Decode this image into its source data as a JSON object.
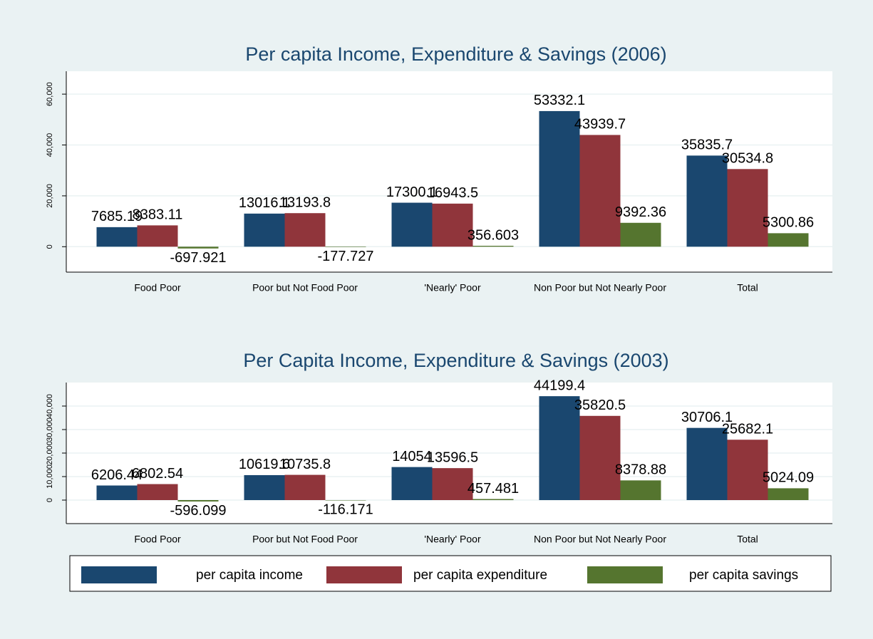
{
  "chart_data": [
    {
      "type": "bar",
      "title": "Per capita Income, Expenditure & Savings (2006)",
      "categories": [
        "Food Poor",
        "Poor but Not Food Poor",
        "'Nearly' Poor",
        "Non Poor but Not Nearly Poor",
        "Total"
      ],
      "series": [
        {
          "color": "#1a476f",
          "values": [
            7685.19,
            13016.1,
            17300.1,
            53332.1,
            35835.7
          ]
        },
        {
          "color": "#90353b",
          "values": [
            8383.11,
            13193.8,
            16943.5,
            43939.7,
            30534.8
          ]
        },
        {
          "color": "#55752f",
          "values": [
            -697.921,
            -177.727,
            356.603,
            9392.36,
            5300.86
          ]
        }
      ],
      "ylim": [
        -10000,
        69000
      ],
      "yticks": [
        0,
        {
          "value": 20000,
          "label": "20,000"
        },
        {
          "value": 40000,
          "label": "40,000"
        },
        {
          "value": 60000,
          "label": "60,000"
        }
      ],
      "grid": true
    },
    {
      "type": "bar",
      "title": "Per Capita Income,  Expenditure & Savings (2003)",
      "categories": [
        "Food Poor",
        "Poor but Not Food Poor",
        "'Nearly' Poor",
        "Non Poor but Not Nearly Poor",
        "Total"
      ],
      "series": [
        {
          "name": "per capita income",
          "color": "#1a476f",
          "values": [
            6206.44,
            10619.6,
            14054,
            44199.4,
            30706.1
          ]
        },
        {
          "name": "per capita expenditure",
          "color": "#90353b",
          "values": [
            6802.54,
            10735.8,
            13596.5,
            35820.5,
            25682.1
          ]
        },
        {
          "name": "per capita savings",
          "color": "#55752f",
          "values": [
            -596.099,
            -116.171,
            457.481,
            8378.88,
            5024.09
          ]
        }
      ],
      "ylim": [
        -10000,
        50000
      ],
      "yticks": [
        0,
        {
          "value": 10000,
          "label": "10,000"
        },
        {
          "value": 20000,
          "label": "20,000"
        },
        {
          "value": 30000,
          "label": "30,000"
        },
        {
          "value": 40000,
          "label": "40,000"
        }
      ],
      "grid": true
    }
  ]
}
